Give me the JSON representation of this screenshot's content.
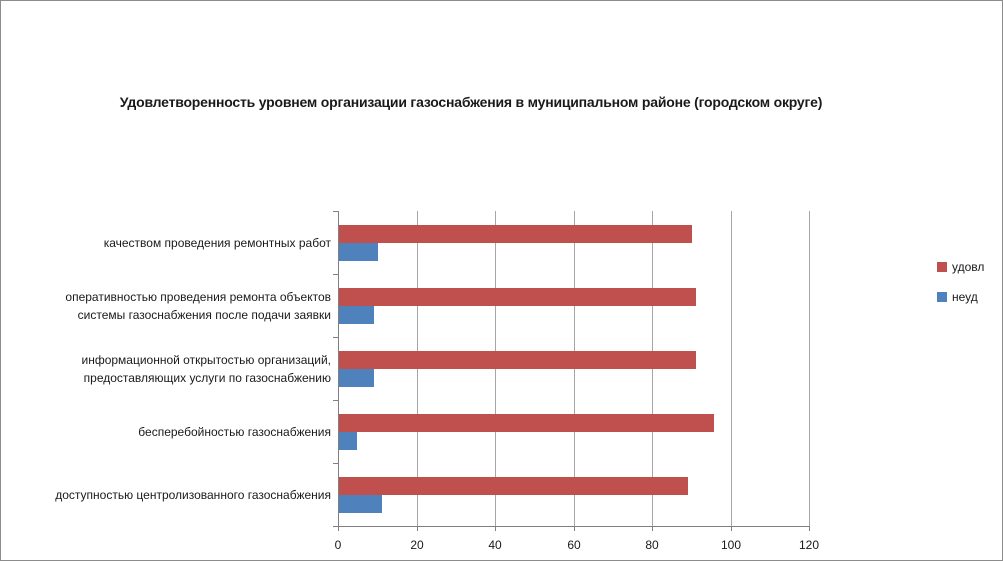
{
  "chart_data": {
    "type": "bar",
    "orientation": "horizontal",
    "title": "Удовлетворенность уровнем организации газоснабжения в муниципальном районе (городском округе)",
    "categories": [
      "качеством проведения ремонтных работ",
      "оперативностью проведения ремонта объектов системы газоснабжения после подачи заявки",
      "информационной открытостью организаций, предоставляющих услуги по газоснабжению",
      "бесперебойностью газоснабжения",
      "доступностью центролизованного газоснабжения"
    ],
    "series": [
      {
        "name": "удовл",
        "color": "#C0504D",
        "values": [
          90,
          91,
          91,
          95.5,
          89
        ]
      },
      {
        "name": "неуд",
        "color": "#4F81BD",
        "values": [
          10,
          9,
          9,
          4.5,
          11
        ]
      }
    ],
    "xlim": [
      0,
      120
    ],
    "x_ticks": [
      0,
      20,
      40,
      60,
      80,
      100,
      120
    ],
    "xlabel": "",
    "ylabel": "",
    "grid": "vertical",
    "legend_position": "right",
    "colors": {
      "gridline": "#a6a6a6",
      "axis": "#808080",
      "text": "#1a1a1a",
      "background": "#ffffff"
    }
  }
}
